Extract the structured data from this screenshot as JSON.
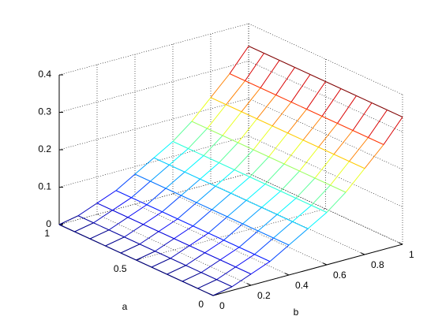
{
  "chart_data": {
    "type": "mesh",
    "xlabel": "b",
    "ylabel": "a",
    "x": [
      0,
      0.1,
      0.2,
      0.3,
      0.4,
      0.5,
      0.6,
      0.7,
      0.8,
      0.9,
      1
    ],
    "y": [
      0,
      0.1,
      0.2,
      0.3,
      0.4,
      0.5,
      0.6,
      0.7,
      0.8,
      0.9,
      1
    ],
    "z": [
      [
        0,
        0.01,
        0.03,
        0.05,
        0.08,
        0.11,
        0.14,
        0.18,
        0.23,
        0.28,
        0.34
      ],
      [
        0,
        0.01,
        0.03,
        0.05,
        0.08,
        0.11,
        0.14,
        0.18,
        0.23,
        0.28,
        0.34
      ],
      [
        0,
        0.01,
        0.03,
        0.05,
        0.08,
        0.11,
        0.14,
        0.18,
        0.23,
        0.28,
        0.34
      ],
      [
        0,
        0.01,
        0.03,
        0.05,
        0.08,
        0.11,
        0.14,
        0.18,
        0.23,
        0.28,
        0.34
      ],
      [
        0,
        0.01,
        0.03,
        0.05,
        0.08,
        0.11,
        0.14,
        0.18,
        0.23,
        0.28,
        0.34
      ],
      [
        0,
        0.01,
        0.03,
        0.05,
        0.08,
        0.11,
        0.14,
        0.18,
        0.23,
        0.28,
        0.34
      ],
      [
        0,
        0.01,
        0.03,
        0.05,
        0.08,
        0.11,
        0.14,
        0.18,
        0.23,
        0.28,
        0.34
      ],
      [
        0,
        0.01,
        0.03,
        0.05,
        0.08,
        0.11,
        0.14,
        0.18,
        0.23,
        0.28,
        0.34
      ],
      [
        0,
        0.01,
        0.03,
        0.05,
        0.08,
        0.11,
        0.14,
        0.18,
        0.23,
        0.28,
        0.34
      ],
      [
        0,
        0.01,
        0.03,
        0.05,
        0.08,
        0.11,
        0.14,
        0.18,
        0.23,
        0.28,
        0.34
      ],
      [
        0,
        0.01,
        0.03,
        0.05,
        0.08,
        0.11,
        0.14,
        0.18,
        0.23,
        0.28,
        0.34
      ]
    ],
    "xlim": [
      0,
      1
    ],
    "xticks": [
      0,
      0.2,
      0.4,
      0.6,
      0.8,
      1
    ],
    "ylim": [
      0,
      1
    ],
    "yticks": [
      0,
      0.5,
      1
    ],
    "zlim": [
      0,
      0.4
    ],
    "zticks": [
      0,
      0.1,
      0.2,
      0.3,
      0.4
    ],
    "colormap": "jet",
    "grid": true
  }
}
